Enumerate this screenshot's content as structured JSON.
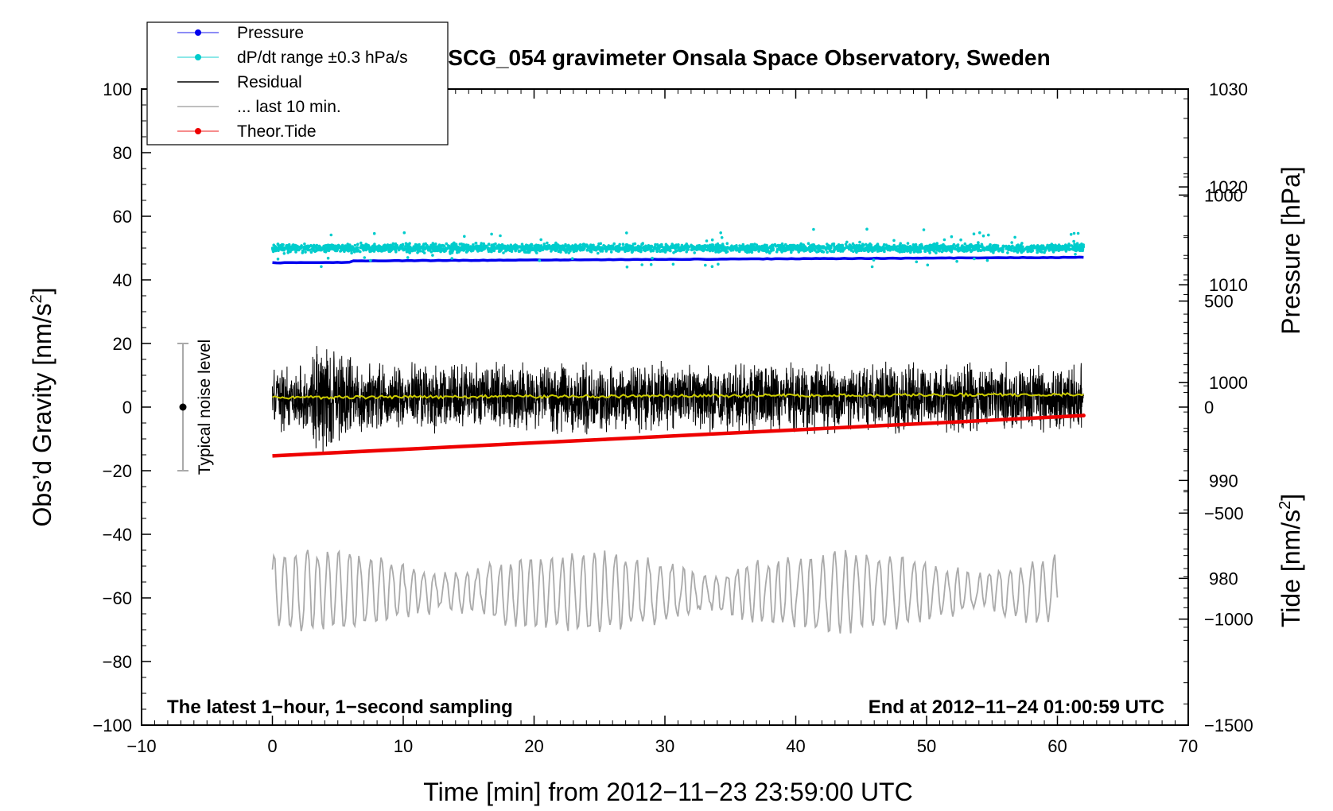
{
  "chart_data": {
    "type": "line",
    "title": "SCG_054 gravimeter Onsala Space Observatory, Sweden",
    "xlabel": "Time [min] from 2012−11−23 23:59:00 UTC",
    "ylabel_left_main": "Obs’d Gravity [nm/s",
    "ylabel_left_sup": "2",
    "ylabel_left_end": "]",
    "ylabel_right_pressure": "Pressure [hPa]",
    "ylabel_right_tide_main": "Tide [nm/s",
    "ylabel_right_tide_sup": "2",
    "ylabel_right_tide_end": "]",
    "xlim": [
      -10,
      70
    ],
    "ylim_left": [
      -100,
      100
    ],
    "ylim_pressure": [
      965,
      1030
    ],
    "ylim_tide": [
      -1500,
      1500
    ],
    "x_ticks": [
      "−10",
      "0",
      "10",
      "20",
      "30",
      "40",
      "50",
      "60",
      "70"
    ],
    "y_left_ticks": [
      "100",
      "80",
      "60",
      "40",
      "20",
      "0",
      "−20",
      "−40",
      "−60",
      "−80",
      "−100"
    ],
    "y_pressure_ticks": [
      "1030",
      "1020",
      "1010",
      "1000",
      "990",
      "980"
    ],
    "y_tide_ticks": [
      "1000",
      "500",
      "0",
      "−500",
      "−1000",
      "−1500"
    ],
    "legend": [
      {
        "label": "Pressure",
        "color": "#0000ee",
        "marker": true
      },
      {
        "label": "dP/dt range ±0.3 hPa/s",
        "color": "#00cccc",
        "marker": true
      },
      {
        "label": "Residual",
        "color": "#000000",
        "marker": false
      },
      {
        "label": "... last 10 min.",
        "color": "#aaaaaa",
        "marker": false
      },
      {
        "label": "Theor.Tide",
        "color": "#ee0000",
        "marker": true
      }
    ],
    "noise_label": "Typical noise level",
    "noise_level": {
      "center": 0,
      "half_range": 20
    },
    "note_left": "The latest 1−hour, 1−second sampling",
    "note_right": "End at 2012−11−24 01:00:59 UTC",
    "series": [
      {
        "name": "Pressure",
        "axis": "pressure",
        "x": [
          0,
          62
        ],
        "values": [
          1012.4,
          1012.8
        ],
        "color": "#0000ee"
      },
      {
        "name": "dP/dt range ±0.3 hPa/s",
        "axis": "left",
        "x": [
          0,
          62
        ],
        "center": 50,
        "spread": 3,
        "color": "#00cccc"
      },
      {
        "name": "Residual",
        "axis": "left",
        "x": [
          0,
          62
        ],
        "center": 3,
        "amplitude": 12,
        "color": "#000000"
      },
      {
        "name": "Residual mean",
        "axis": "left",
        "x": [
          0,
          62
        ],
        "values": [
          3,
          4
        ],
        "color": "#cccc00"
      },
      {
        "name": "... last 10 min.",
        "axis": "left",
        "x": [
          0,
          60
        ],
        "center": -58,
        "amplitude": 12,
        "color": "#aaaaaa"
      },
      {
        "name": "Theor.Tide",
        "axis": "tide",
        "x": [
          0,
          62
        ],
        "values": [
          -230,
          -40
        ],
        "color": "#ee0000"
      }
    ]
  }
}
